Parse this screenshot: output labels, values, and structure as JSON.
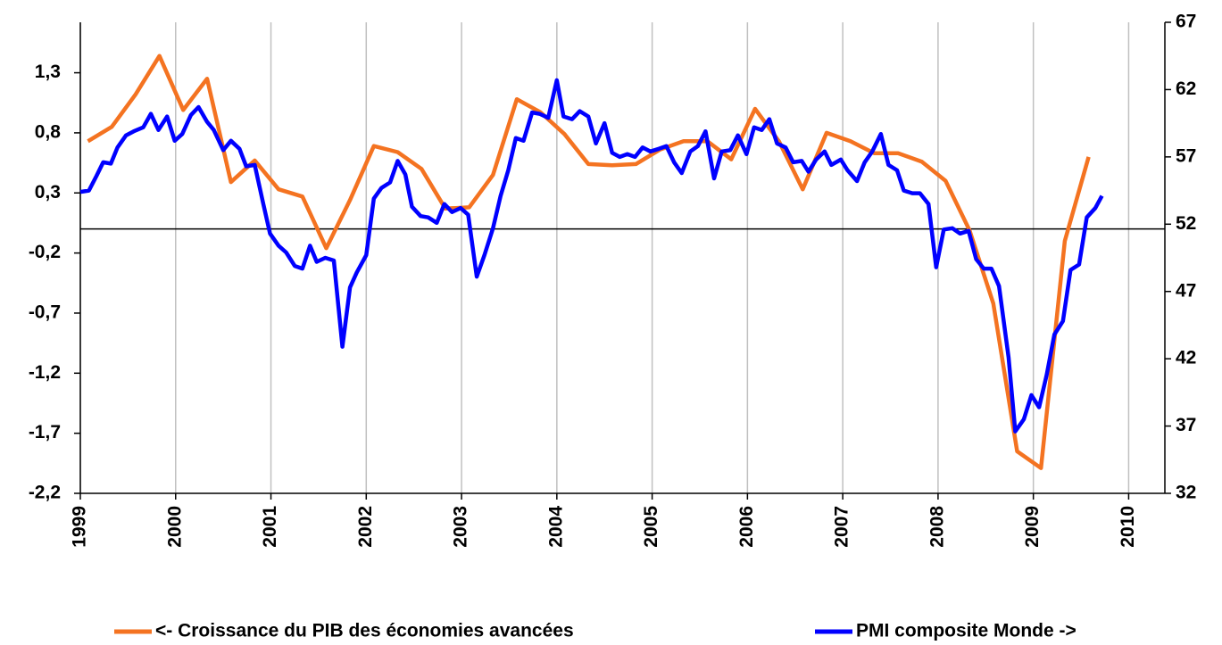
{
  "chart_data": {
    "type": "line",
    "xlim": [
      1999,
      2010.38
    ],
    "xticks": [
      1999,
      2000,
      2001,
      2002,
      2003,
      2004,
      2005,
      2006,
      2007,
      2008,
      2009,
      2010
    ],
    "ylim": [
      -2.2,
      1.72
    ],
    "yticks": [
      {
        "value": -2.2,
        "label": "-2,2"
      },
      {
        "value": -1.7,
        "label": "-1,7"
      },
      {
        "value": -1.2,
        "label": "-1,2"
      },
      {
        "value": -0.7,
        "label": "-0,7"
      },
      {
        "value": -0.2,
        "label": "-0,2"
      },
      {
        "value": 0.3,
        "label": "0,3"
      },
      {
        "value": 0.8,
        "label": "0,8"
      },
      {
        "value": 1.3,
        "label": "1,3"
      }
    ],
    "y2lim": [
      32,
      67
    ],
    "y2ticks": [
      32,
      37,
      42,
      47,
      52,
      57,
      62,
      67
    ],
    "grid": true,
    "legend": "bottom",
    "series": [
      {
        "name": "<- Croissance du PIB des économies avancées",
        "color": "#f47321",
        "x": [
          1999.08,
          1999.33,
          1999.58,
          1999.83,
          2000.08,
          2000.33,
          2000.58,
          2000.83,
          2001.08,
          2001.33,
          2001.58,
          2001.83,
          2002.08,
          2002.33,
          2002.58,
          2002.83,
          2003.08,
          2003.33,
          2003.58,
          2003.83,
          2004.08,
          2004.33,
          2004.58,
          2004.83,
          2005.08,
          2005.33,
          2005.58,
          2005.83,
          2006.08,
          2006.33,
          2006.58,
          2006.83,
          2007.08,
          2007.33,
          2007.58,
          2007.83,
          2008.08,
          2008.33,
          2008.58,
          2008.83,
          2009.08,
          2009.33,
          2009.58
        ],
        "values": [
          0.73,
          0.85,
          1.12,
          1.44,
          0.99,
          1.25,
          0.39,
          0.57,
          0.33,
          0.27,
          -0.16,
          0.24,
          0.69,
          0.64,
          0.5,
          0.17,
          0.18,
          0.45,
          1.08,
          0.97,
          0.79,
          0.54,
          0.53,
          0.54,
          0.66,
          0.73,
          0.73,
          0.58,
          1.0,
          0.73,
          0.33,
          0.8,
          0.73,
          0.63,
          0.63,
          0.56,
          0.4,
          -0.01,
          -0.62,
          -1.85,
          -1.99,
          -0.1,
          0.6
        ]
      },
      {
        "name": "PMI composite Monde ->",
        "color": "#0000ff",
        "axis": "y2",
        "x": [
          1999.0,
          1999.09,
          1999.17,
          1999.24,
          1999.32,
          1999.39,
          1999.48,
          1999.56,
          1999.66,
          1999.74,
          1999.82,
          1999.91,
          1999.99,
          2000.07,
          2000.16,
          2000.24,
          2000.33,
          2000.4,
          2000.5,
          2000.58,
          2000.67,
          2000.74,
          2000.83,
          2000.92,
          2000.99,
          2001.08,
          2001.16,
          2001.25,
          2001.33,
          2001.41,
          2001.48,
          2001.57,
          2001.66,
          2001.75,
          2001.83,
          2001.9,
          2002.0,
          2002.08,
          2002.16,
          2002.25,
          2002.33,
          2002.41,
          2002.48,
          2002.57,
          2002.65,
          2002.74,
          2002.82,
          2002.9,
          2002.99,
          2003.07,
          2003.16,
          2003.24,
          2003.33,
          2003.41,
          2003.49,
          2003.57,
          2003.65,
          2003.74,
          2003.82,
          2003.91,
          2004.0,
          2004.07,
          2004.16,
          2004.24,
          2004.33,
          2004.41,
          2004.5,
          2004.58,
          2004.66,
          2004.74,
          2004.82,
          2004.9,
          2004.98,
          2005.07,
          2005.15,
          2005.23,
          2005.31,
          2005.4,
          2005.48,
          2005.56,
          2005.65,
          2005.73,
          2005.82,
          2005.9,
          2005.99,
          2006.07,
          2006.15,
          2006.23,
          2006.31,
          2006.4,
          2006.48,
          2006.57,
          2006.64,
          2006.72,
          2006.81,
          2006.88,
          2006.98,
          2007.05,
          2007.15,
          2007.23,
          2007.31,
          2007.4,
          2007.48,
          2007.57,
          2007.64,
          2007.73,
          2007.81,
          2007.9,
          2007.98,
          2008.06,
          2008.15,
          2008.23,
          2008.32,
          2008.4,
          2008.48,
          2008.56,
          2008.64,
          2008.74,
          2008.81,
          2008.9,
          2008.98,
          2009.06,
          2009.14,
          2009.22,
          2009.31,
          2009.39,
          2009.48,
          2009.56,
          2009.65,
          2009.72
        ],
        "values": [
          54.4,
          54.5,
          55.6,
          56.6,
          56.5,
          57.7,
          58.6,
          58.9,
          59.2,
          60.2,
          59.0,
          60.0,
          58.2,
          58.7,
          60.1,
          60.7,
          59.6,
          59.0,
          57.5,
          58.2,
          57.6,
          56.3,
          56.4,
          53.5,
          51.3,
          50.4,
          49.9,
          48.9,
          48.7,
          50.4,
          49.2,
          49.5,
          49.3,
          42.9,
          47.3,
          48.4,
          49.7,
          53.9,
          54.7,
          55.1,
          56.7,
          55.7,
          53.3,
          52.6,
          52.5,
          52.1,
          53.5,
          52.9,
          53.2,
          52.7,
          48.1,
          49.7,
          51.7,
          54.1,
          56.0,
          58.4,
          58.2,
          60.3,
          60.2,
          59.9,
          62.7,
          60.0,
          59.8,
          60.4,
          60.0,
          58.0,
          59.5,
          57.3,
          57.0,
          57.2,
          57.0,
          57.7,
          57.4,
          57.6,
          57.8,
          56.6,
          55.8,
          57.4,
          57.8,
          58.9,
          55.4,
          57.4,
          57.5,
          58.6,
          57.2,
          59.2,
          59.0,
          59.8,
          58.0,
          57.7,
          56.6,
          56.7,
          55.9,
          56.8,
          57.4,
          56.4,
          56.8,
          56.0,
          55.2,
          56.6,
          57.4,
          58.7,
          56.4,
          56.0,
          54.5,
          54.3,
          54.3,
          53.5,
          48.8,
          51.6,
          51.7,
          51.3,
          51.5,
          49.4,
          48.7,
          48.7,
          47.4,
          42.1,
          36.6,
          37.5,
          39.3,
          38.4,
          40.8,
          43.8,
          44.8,
          48.6,
          49.0,
          52.5,
          53.2,
          54.1
        ]
      }
    ]
  }
}
